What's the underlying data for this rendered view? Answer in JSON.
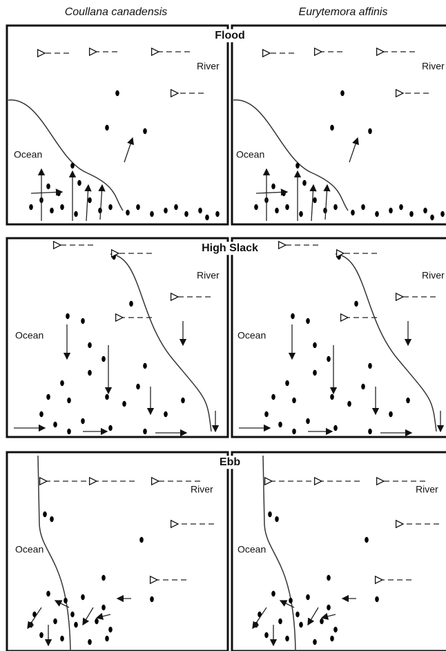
{
  "headers": [
    "Coullana canadensis",
    "Eurytemora  affinis"
  ],
  "panels": [
    {
      "title": "Flood",
      "left": {
        "river": "River",
        "ocean": "Ocean"
      },
      "right": {
        "river": "River",
        "ocean": "Ocean"
      }
    },
    {
      "title": "High Slack",
      "left": {
        "river": "River",
        "ocean": "Ocean"
      },
      "right": {
        "river": "River",
        "ocean": "Ocean"
      }
    },
    {
      "title": "Ebb",
      "left": {
        "river": "River",
        "ocean": "Ocean"
      },
      "right": {
        "river": "River",
        "ocean": "Ocean"
      }
    }
  ]
}
